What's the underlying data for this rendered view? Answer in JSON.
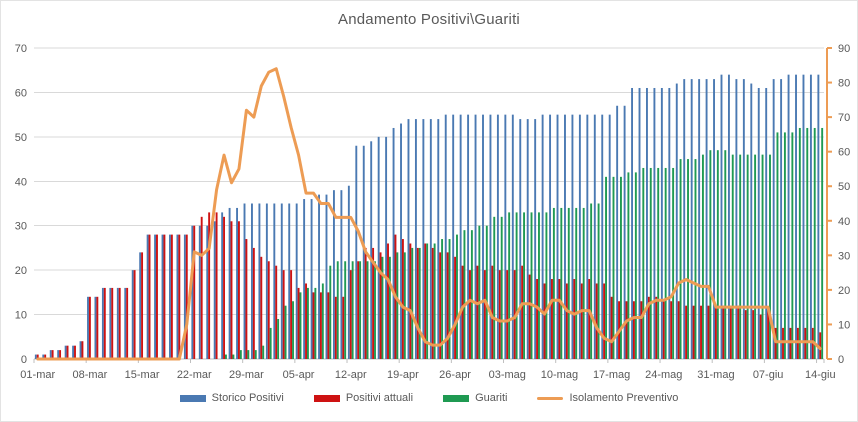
{
  "chart_data": {
    "type": "combo-bar-line",
    "title": "Andamento Positivi\\Guariti",
    "n_days": 106,
    "start_date": "01-mar",
    "end_date": "14-giu",
    "x_tick_labels": [
      "01-mar",
      "08-mar",
      "15-mar",
      "22-mar",
      "29-mar",
      "05-apr",
      "12-apr",
      "19-apr",
      "26-apr",
      "03-mag",
      "10-mag",
      "17-mag",
      "24-mag",
      "31-mag",
      "07-giu",
      "14-giu"
    ],
    "left_axis": {
      "min": 0,
      "max": 70,
      "step": 10,
      "ticks": [
        0,
        10,
        20,
        30,
        40,
        50,
        60,
        70
      ]
    },
    "right_axis": {
      "min": 0,
      "max": 90,
      "step": 10,
      "ticks": [
        0,
        10,
        20,
        30,
        40,
        50,
        60,
        70,
        80,
        90
      ]
    },
    "grid": true,
    "legend_position": "bottom",
    "series": [
      {
        "name": "Storico Positivi",
        "type": "bar",
        "axis": "left",
        "color": "#4A79B2",
        "values": [
          1,
          1,
          2,
          2,
          3,
          3,
          4,
          14,
          14,
          16,
          16,
          16,
          16,
          20,
          24,
          28,
          28,
          28,
          28,
          28,
          28,
          30,
          30,
          30,
          31,
          33,
          34,
          34,
          35,
          35,
          35,
          35,
          35,
          35,
          35,
          35,
          36,
          36,
          37,
          37,
          38,
          38,
          39,
          48,
          48,
          49,
          50,
          50,
          52,
          53,
          54,
          54,
          54,
          54,
          54,
          55,
          55,
          55,
          55,
          55,
          55,
          55,
          55,
          55,
          55,
          54,
          54,
          54,
          55,
          55,
          55,
          55,
          55,
          55,
          55,
          55,
          55,
          55,
          57,
          57,
          61,
          61,
          61,
          61,
          61,
          61,
          62,
          63,
          63,
          63,
          63,
          63,
          64,
          64,
          63,
          63,
          62,
          61,
          61,
          63,
          63,
          64,
          64,
          64,
          64,
          64
        ]
      },
      {
        "name": "Positivi attuali",
        "type": "bar",
        "axis": "left",
        "color": "#CE1212",
        "values": [
          1,
          1,
          2,
          2,
          3,
          3,
          4,
          14,
          14,
          16,
          16,
          16,
          16,
          20,
          24,
          28,
          28,
          28,
          28,
          28,
          28,
          30,
          32,
          33,
          33,
          32,
          31,
          31,
          27,
          25,
          23,
          22,
          21,
          20,
          20,
          16,
          17,
          15,
          15,
          15,
          14,
          14,
          20,
          22,
          25,
          25,
          24,
          26,
          28,
          27,
          26,
          25,
          26,
          25,
          24,
          24,
          23,
          21,
          20,
          21,
          20,
          21,
          20,
          20,
          20,
          21,
          19,
          18,
          17,
          18,
          18,
          17,
          18,
          17,
          18,
          17,
          17,
          14,
          13,
          13,
          13,
          13,
          14,
          14,
          13,
          13,
          13,
          12,
          12,
          12,
          12,
          12,
          12,
          12,
          12,
          11,
          11,
          10,
          11,
          7,
          7,
          7,
          7,
          7,
          7,
          6
        ]
      },
      {
        "name": "Guariti",
        "type": "bar",
        "axis": "left",
        "color": "#1F9A52",
        "values": [
          0,
          0,
          0,
          0,
          0,
          0,
          0,
          0,
          0,
          0,
          0,
          0,
          0,
          0,
          0,
          0,
          0,
          0,
          0,
          0,
          0,
          0,
          0,
          0,
          0,
          1,
          1,
          2,
          2,
          2,
          3,
          7,
          9,
          12,
          13,
          15,
          16,
          16,
          17,
          21,
          22,
          22,
          22,
          22,
          22,
          22,
          23,
          23,
          24,
          24,
          25,
          25,
          26,
          26,
          27,
          27,
          28,
          29,
          29,
          30,
          30,
          32,
          32,
          33,
          33,
          33,
          33,
          33,
          33,
          34,
          34,
          34,
          34,
          34,
          35,
          35,
          41,
          41,
          41,
          42,
          42,
          43,
          43,
          43,
          43,
          43,
          45,
          45,
          45,
          46,
          47,
          47,
          47,
          46,
          46,
          46,
          46,
          46,
          46,
          51,
          51,
          51,
          52,
          52,
          52,
          52
        ]
      },
      {
        "name": "Isolamento Preventivo",
        "type": "line",
        "axis": "right",
        "color": "#ED9C54",
        "values": [
          0,
          0,
          0,
          0,
          0,
          0,
          0,
          0,
          0,
          0,
          0,
          0,
          0,
          0,
          0,
          0,
          0,
          0,
          0,
          0,
          10,
          31,
          30,
          32,
          49,
          59,
          51,
          55,
          72,
          70,
          79,
          83,
          84,
          76,
          67,
          59,
          48,
          48,
          45,
          45,
          41,
          41,
          41,
          37,
          31,
          28,
          25,
          23,
          18,
          15,
          14,
          9,
          5,
          4,
          4,
          6,
          10,
          15,
          17,
          16,
          17,
          12,
          11,
          11,
          12,
          16,
          16,
          15,
          13,
          17,
          17,
          14,
          13,
          14,
          14,
          9,
          6,
          5,
          8,
          11,
          12,
          12,
          16,
          17,
          17,
          18,
          22,
          23,
          22,
          21,
          21,
          15,
          15,
          15,
          15,
          15,
          15,
          15,
          15,
          5,
          5,
          5,
          5,
          5,
          5,
          3
        ]
      }
    ]
  },
  "colors": {
    "grid": "#D9D9D9",
    "axis": "#BFBFBF",
    "text": "#595959",
    "right_axis_line": "#ED9C54",
    "background": "#FFFFFF"
  }
}
